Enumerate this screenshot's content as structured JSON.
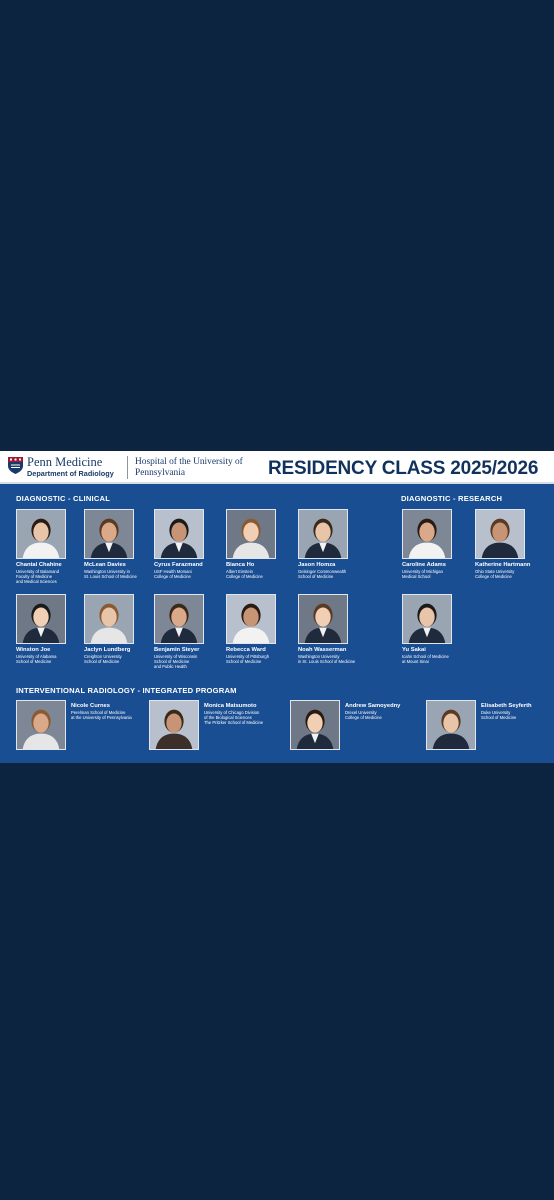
{
  "header": {
    "org_name": "Penn Medicine",
    "department": "Department of Radiology",
    "hospital": "Hospital of the University of Pennsylvania",
    "title": "RESIDENCY CLASS 2025/2026"
  },
  "colors": {
    "board": "#1a4e93",
    "background": "#0c2440",
    "title": "#12325e"
  },
  "sections": {
    "clinical": "DIAGNOSTIC - CLINICAL",
    "research": "DIAGNOSTIC - RESEARCH",
    "ir": "INTERVENTIONAL RADIOLOGY - INTEGRATED PROGRAM"
  },
  "people": [
    {
      "name": "Chantal Chahine",
      "school": "University of Balamand\nFaculty of Medicine\nand Medical Sciences"
    },
    {
      "name": "McLean Davies",
      "school": "Washington University in\nSt. Louis School of Medicine"
    },
    {
      "name": "Cyrus Farazmand",
      "school": "USF Health Morsani\nCollege of Medicine"
    },
    {
      "name": "Bianca Ho",
      "school": "Albert Einstein\nCollege of Medicine"
    },
    {
      "name": "Jason Homza",
      "school": "Geisinger Commonwealth\nSchool of Medicine"
    },
    {
      "name": "Caroline Adams",
      "school": "University of Michigan\nMedical School"
    },
    {
      "name": "Katherine Hartmann",
      "school": "Ohio State University\nCollege of Medicine"
    },
    {
      "name": "Winston Joe",
      "school": "University of Alabama\nSchool of Medicine"
    },
    {
      "name": "Jaclyn Lundberg",
      "school": "Creighton University\nSchool of Medicine"
    },
    {
      "name": "Benjamin Steyer",
      "school": "University of Wisconsin\nSchool of Medicine\nand Public Health"
    },
    {
      "name": "Rebecca Ward",
      "school": "University of Pittsburgh\nSchool of Medicine"
    },
    {
      "name": "Noah Wasserman",
      "school": "Washington University\nin St. Louis School of Medicine"
    },
    {
      "name": "Yu Sakai",
      "school": "Icahn School of Medicine\nat Mount Sinai"
    },
    {
      "name": "Nicole Curnes",
      "school": "Perelman School of Medicine\nat the University of Pennsylvania"
    },
    {
      "name": "Monica Matsumoto",
      "school": "University of Chicago Division\nof the Biological Sciences\nThe Pritzker School of Medicine"
    },
    {
      "name": "Andrew Samoyedny",
      "school": "Drexel University\nCollege of Medicine"
    },
    {
      "name": "Elisabeth Seyferth",
      "school": "Duke University\nSchool of Medicine"
    }
  ]
}
